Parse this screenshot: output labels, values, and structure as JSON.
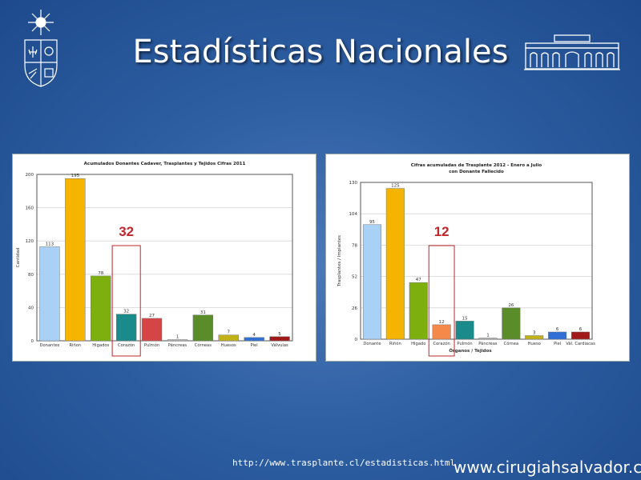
{
  "slide": {
    "title": "Estadísticas Nacionales",
    "source_url": "http://www.trasplante.cl/estadisticas.html",
    "website": "www.cirugiahsalvador.cl"
  },
  "logos": {
    "left": "university-emblem-icon",
    "right": "building-facade-icon"
  },
  "chart_data": [
    {
      "type": "bar",
      "title": "Acumulados Donantes Cadaver, Trasplantes y Tejidos Cifras 2011",
      "subtitle": "",
      "xlabel": "",
      "ylabel": "Cantidad",
      "ylim": [
        0,
        200
      ],
      "yticks": [
        0,
        40,
        80,
        120,
        160,
        200
      ],
      "categories": [
        "Donantes",
        "Riñon",
        "Higados",
        "Corazón",
        "Pulmón",
        "Páncreas",
        "Córneas",
        "Huesos",
        "Piel",
        "Válvulas"
      ],
      "values": [
        113,
        195,
        78,
        32,
        27,
        1,
        31,
        7,
        4,
        5
      ],
      "colors": [
        "#a9d0f5",
        "#f4b400",
        "#7db00e",
        "#1b8a8a",
        "#d64545",
        "#b7b7b7",
        "#5b8c2a",
        "#c2b21a",
        "#2f6fd6",
        "#a01818"
      ],
      "highlight": {
        "category": "Corazón",
        "value": "32"
      }
    },
    {
      "type": "bar",
      "title": "Cifras acumuladas de Trasplante 2012 - Enero a Julio",
      "subtitle": "con Donante Fallecido",
      "xlabel": "Órganos / Tejidos",
      "ylabel": "Trasplantes / Implantes",
      "ylim": [
        0,
        130
      ],
      "yticks": [
        0,
        26,
        52,
        78,
        104,
        130
      ],
      "categories": [
        "Donante",
        "Riñón",
        "Higado",
        "Corazón",
        "Pulmón",
        "Páncreas",
        "Córnea",
        "Hueso",
        "Piel",
        "Vál. Cardiacas"
      ],
      "values": [
        95,
        125,
        47,
        12,
        15,
        1,
        26,
        3,
        6,
        6
      ],
      "colors": [
        "#a9d0f5",
        "#f4b400",
        "#7db00e",
        "#f4894a",
        "#1b8a8a",
        "#b7b7b7",
        "#5b8c2a",
        "#c2b21a",
        "#2f6fd6",
        "#a01818"
      ],
      "highlight": {
        "category": "Corazón",
        "value": "12"
      }
    }
  ]
}
